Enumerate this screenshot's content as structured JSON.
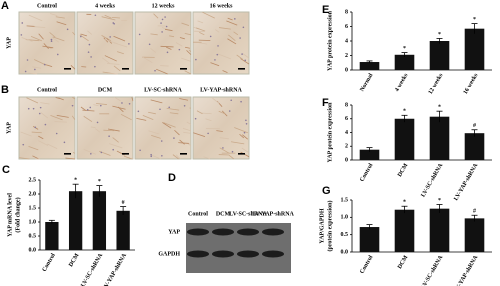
{
  "histology": [
    {
      "panel": "A",
      "row_label": "YAP",
      "columns": [
        "Control",
        "4 weeks",
        "12 weeks",
        "16 weeks"
      ]
    },
    {
      "panel": "B",
      "row_label": "YAP",
      "columns": [
        "Control",
        "DCM",
        "LV-SC-shRNA",
        "LV-YAP-shRNA"
      ]
    }
  ],
  "blot": {
    "panel": "D",
    "columns": [
      "Control",
      "DCM",
      "LV-SC-shRNA",
      "LV-YAP-shRNA"
    ],
    "rows": [
      "YAP",
      "GAPDH"
    ]
  },
  "chart_data": [
    {
      "type": "bar",
      "panel": "C",
      "ylabel": [
        "YAP mRNA level",
        "(Fold change)"
      ],
      "categories": [
        "Control",
        "DCM",
        "LV-SC-shRNA",
        "LV-YAP-shRNA"
      ],
      "values": [
        1.0,
        2.1,
        2.1,
        1.4
      ],
      "errors": [
        0.06,
        0.25,
        0.2,
        0.15
      ],
      "annotations": [
        null,
        "*",
        "*",
        "#"
      ],
      "color": "#111111",
      "ylim": [
        0,
        2.5
      ],
      "yticks": [
        {
          "value": 0,
          "label": "0.0"
        },
        {
          "value": 0.5,
          "label": "0.5"
        },
        {
          "value": 1,
          "label": "1.0"
        },
        {
          "value": 1.5,
          "label": "1.5"
        },
        {
          "value": 2,
          "label": "2.0"
        },
        {
          "value": 2.5,
          "label": "2.5"
        }
      ]
    },
    {
      "type": "bar",
      "panel": "E",
      "ylabel": [
        "YAP protein expression"
      ],
      "categories": [
        "Normal",
        "4 weeks",
        "12 weeks",
        "16 weeks"
      ],
      "values": [
        1.1,
        2.1,
        4.0,
        5.7
      ],
      "errors": [
        0.15,
        0.3,
        0.35,
        0.7
      ],
      "annotations": [
        null,
        "*",
        "*",
        "*"
      ],
      "color": "#111111",
      "ylim": [
        0,
        8
      ],
      "yticks": [
        0,
        2,
        4,
        6,
        8
      ]
    },
    {
      "type": "bar",
      "panel": "F",
      "ylabel": [
        "YAP protein expression"
      ],
      "categories": [
        "Control",
        "DCM",
        "LV-SC-shRNA",
        "LV-YAP-shRNA"
      ],
      "values": [
        1.5,
        6.0,
        6.3,
        3.9
      ],
      "errors": [
        0.3,
        0.5,
        0.8,
        0.5
      ],
      "annotations": [
        null,
        "*",
        "*",
        "#"
      ],
      "color": "#111111",
      "ylim": [
        0,
        8
      ],
      "yticks": [
        0,
        2,
        4,
        6,
        8
      ]
    },
    {
      "type": "bar",
      "panel": "G",
      "ylabel": [
        "YAP/GAPDH",
        "(protein expression)"
      ],
      "categories": [
        "Control",
        "DCM",
        "LV-SC-shRNA",
        "LV-YAP-shRNA"
      ],
      "values": [
        0.72,
        1.22,
        1.25,
        0.97
      ],
      "errors": [
        0.07,
        0.1,
        0.12,
        0.09
      ],
      "annotations": [
        null,
        "*",
        "*",
        "#"
      ],
      "color": "#111111",
      "ylim": [
        0,
        1.5
      ],
      "yticks": [
        {
          "value": 0,
          "label": "0.0"
        },
        {
          "value": 0.5,
          "label": "0.5"
        },
        {
          "value": 1,
          "label": "1.0"
        },
        {
          "value": 1.5,
          "label": "1.5"
        }
      ]
    }
  ]
}
